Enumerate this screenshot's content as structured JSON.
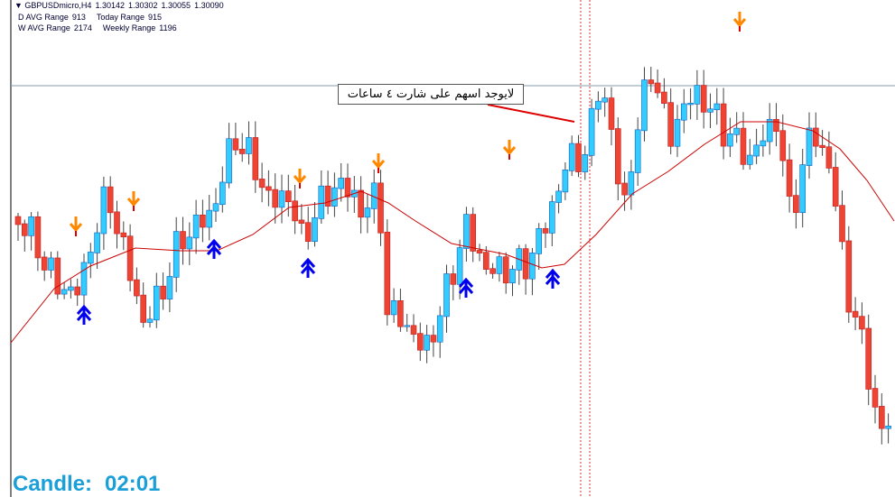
{
  "header": {
    "symbol": "GBPUSDmicro,H4",
    "prices": [
      "1.30142",
      "1.30302",
      "1.30055",
      "1.30090"
    ]
  },
  "stats": [
    {
      "label": "D AVG Range",
      "value": "913"
    },
    {
      "label": "Today Range",
      "value": "915"
    },
    {
      "label": "W AVG Range",
      "value": "2174"
    },
    {
      "label": "Weekly Range",
      "value": "1196"
    }
  ],
  "annotation": "لايوجد اسهم على شارت ٤ ساعات",
  "timer": {
    "label": "Candle:",
    "value": "02:01"
  }
}
